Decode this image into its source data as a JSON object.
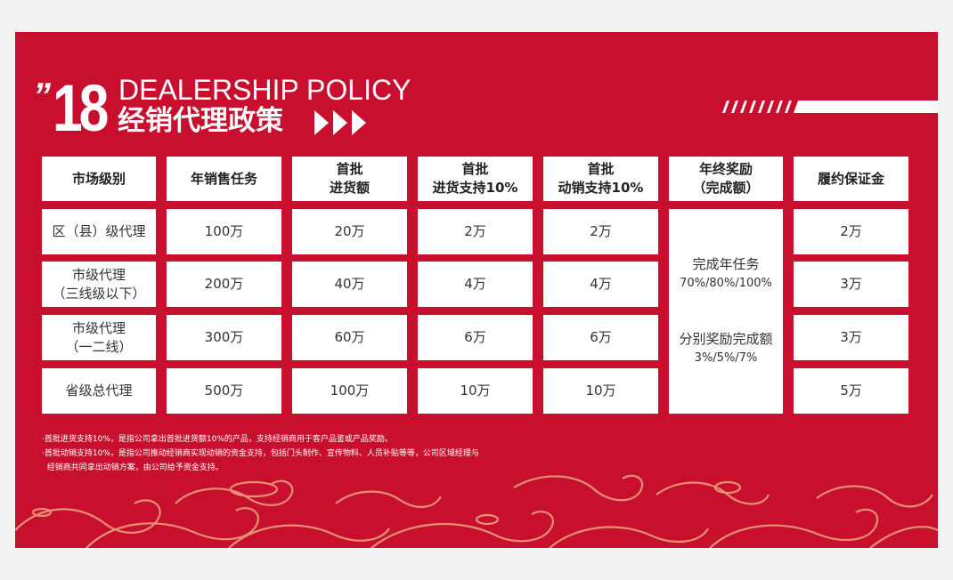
{
  "header": {
    "mark": "”",
    "number": "18",
    "title_en": "DEALERSHIP POLICY",
    "title_cn": "经销代理政策"
  },
  "table": {
    "headers": [
      {
        "line1": "市场级别",
        "line2": ""
      },
      {
        "line1": "年销售任务",
        "line2": ""
      },
      {
        "line1": "首批",
        "line2": "进货额"
      },
      {
        "line1": "首批",
        "line2": "进货支持10%"
      },
      {
        "line1": "首批",
        "line2": "动销支持10%"
      },
      {
        "line1": "年终奖励",
        "line2": "（完成额）"
      },
      {
        "line1": "履约保证金",
        "line2": ""
      }
    ],
    "rows": [
      {
        "level": [
          "区（县）级代理",
          ""
        ],
        "task": "100万",
        "first": "20万",
        "stock_support": "2万",
        "sales_support": "2万",
        "deposit": "2万"
      },
      {
        "level": [
          "市级代理",
          "（三线级以下）"
        ],
        "task": "200万",
        "first": "40万",
        "stock_support": "4万",
        "sales_support": "4万",
        "deposit": "3万"
      },
      {
        "level": [
          "市级代理",
          "（一二线）"
        ],
        "task": "300万",
        "first": "60万",
        "stock_support": "6万",
        "sales_support": "6万",
        "deposit": "3万"
      },
      {
        "level": [
          "省级总代理",
          ""
        ],
        "task": "500万",
        "first": "100万",
        "stock_support": "10万",
        "sales_support": "10万",
        "deposit": "5万"
      }
    ],
    "reward": {
      "line1": "完成年任务",
      "line2": "70%/80%/100%",
      "line3": "分别奖励完成额",
      "line4": "3%/5%/7%"
    }
  },
  "notes": [
    "·首批进货支持10%，是指公司拿出首批进货额10%的产品，支持经销商用于客户品鉴或产品奖励。",
    "·首批动销支持10%，是指公司推动经销商实现动销的资金支持，包括门头制作、宣传物料、人员补贴等等，公司区域经理与",
    "  经销商共同拿出动销方案，由公司给予资金支持。"
  ],
  "colors": {
    "background": "#c8102e",
    "pattern": "#e8a07a",
    "cell": "#ffffff"
  }
}
